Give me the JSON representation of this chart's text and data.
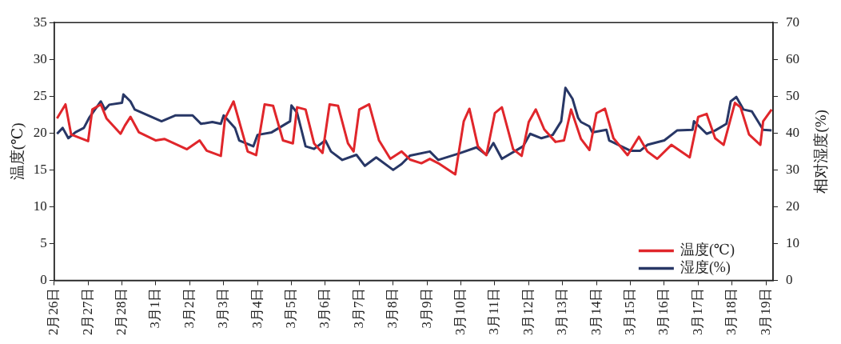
{
  "chart_data": {
    "type": "line",
    "xlim": [
      "--02-26",
      "--03-19T05:00"
    ],
    "xticks": [
      {
        "value": "--02-26",
        "label": "2月26日"
      },
      {
        "value": "--02-27",
        "label": "2月27日"
      },
      {
        "value": "--02-28",
        "label": "2月28日"
      },
      {
        "value": "--03-01",
        "label": "3月1日"
      },
      {
        "value": "--03-02",
        "label": "3月2日"
      },
      {
        "value": "--03-03",
        "label": "3月3日"
      },
      {
        "value": "--03-04",
        "label": "3月4日"
      },
      {
        "value": "--03-05",
        "label": "3月5日"
      },
      {
        "value": "--03-06",
        "label": "3月6日"
      },
      {
        "value": "--03-07",
        "label": "3月7日"
      },
      {
        "value": "--03-08",
        "label": "3月8日"
      },
      {
        "value": "--03-09",
        "label": "3月9日"
      },
      {
        "value": "--03-10",
        "label": "3月10日"
      },
      {
        "value": "--03-11",
        "label": "3月11日"
      },
      {
        "value": "--03-12",
        "label": "3月12日"
      },
      {
        "value": "--03-13",
        "label": "3月13日"
      },
      {
        "value": "--03-14",
        "label": "3月14日"
      },
      {
        "value": "--03-15",
        "label": "3月15日"
      },
      {
        "value": "--03-16",
        "label": "3月16日"
      },
      {
        "value": "--03-17",
        "label": "3月17日"
      },
      {
        "value": "--03-18",
        "label": "3月18日"
      },
      {
        "value": "--03-19",
        "label": "3月19日"
      }
    ],
    "ylabel": "温度(℃)",
    "y2label": "相对湿度(%)",
    "ylim": [
      0,
      35
    ],
    "yticks": [
      0,
      5,
      10,
      15,
      20,
      25,
      30,
      35
    ],
    "y2lim": [
      0,
      70
    ],
    "y2ticks": [
      0,
      10,
      20,
      30,
      40,
      50,
      60,
      70
    ],
    "grid": false,
    "legend": "bottom right",
    "marker": "none",
    "line_style": "solid",
    "series": [
      {
        "name": "温度(℃)",
        "color": "#e0262b",
        "x": [
          "--02-26T02:00",
          "--02-26T08:00",
          "--02-26T12:00",
          "--02-27T00:00",
          "--02-27T03:00",
          "--02-27T09:00",
          "--02-27T13:00",
          "--02-27T23:00",
          "--02-28T02:00",
          "--02-28T06:00",
          "--02-28T12:00",
          "--03-01T00:00",
          "--03-01T06:00",
          "--03-01T22:00",
          "--03-02T07:00",
          "--03-02T12:00",
          "--03-02T22:00",
          "--03-03T01:00",
          "--03-03T07:00",
          "--03-03T17:00",
          "--03-03T23:00",
          "--03-04T05:00",
          "--03-04T11:00",
          "--03-04T18:00",
          "--03-05T01:00",
          "--03-05T04:00",
          "--03-05T10:00",
          "--03-05T16:00",
          "--03-05T22:00",
          "--03-06T03:00",
          "--03-06T09:00",
          "--03-06T16:00",
          "--03-06T20:00",
          "--03-07T00:00",
          "--03-07T07:00",
          "--03-07T14:00",
          "--03-07T22:00",
          "--03-08T06:00",
          "--03-08T12:00",
          "--03-08T20:00",
          "--03-09T02:00",
          "--03-09T08:00",
          "--03-09T20:00",
          "--03-10T02:00",
          "--03-10T06:00",
          "--03-10T12:00",
          "--03-10T18:00",
          "--03-11T00:00",
          "--03-11T05:00",
          "--03-11T13:00",
          "--03-11T19:00",
          "--03-12T00:00",
          "--03-12T05:00",
          "--03-12T11:00",
          "--03-12T19:00",
          "--03-13T01:00",
          "--03-13T06:00",
          "--03-13T13:00",
          "--03-13T19:00",
          "--03-14T00:00",
          "--03-14T06:00",
          "--03-14T12:00",
          "--03-14T22:00",
          "--03-15T06:00",
          "--03-15T12:00",
          "--03-15T19:00",
          "--03-16T05:00",
          "--03-16T18:00",
          "--03-17T00:00",
          "--03-17T06:00",
          "--03-17T12:00",
          "--03-17T18:00",
          "--03-18T02:00",
          "--03-18T06:00",
          "--03-18T12:00",
          "--03-18T20:00",
          "--03-18T22:00",
          "--03-19T04:00"
        ],
        "values": [
          22.0,
          23.9,
          19.8,
          18.9,
          23.2,
          23.9,
          22.0,
          19.9,
          21.0,
          22.2,
          20.1,
          19.0,
          19.2,
          17.8,
          19.0,
          17.6,
          16.9,
          22.0,
          24.3,
          17.5,
          17.0,
          23.9,
          23.7,
          19.0,
          18.6,
          23.5,
          23.2,
          18.6,
          17.3,
          23.9,
          23.7,
          18.6,
          17.5,
          23.2,
          23.9,
          19.0,
          16.5,
          17.5,
          16.4,
          15.9,
          16.5,
          15.9,
          14.4,
          21.6,
          23.3,
          18.2,
          17.0,
          22.7,
          23.5,
          17.8,
          16.9,
          21.5,
          23.2,
          20.5,
          18.8,
          19.0,
          23.2,
          19.2,
          17.7,
          22.7,
          23.3,
          19.3,
          17.0,
          19.5,
          17.5,
          16.5,
          18.4,
          16.7,
          22.2,
          22.6,
          19.3,
          18.4,
          24.1,
          23.5,
          19.8,
          18.4,
          21.6,
          23.2
        ]
      },
      {
        "name": "湿度(%)",
        "color": "#283766",
        "axis": "y2",
        "x": [
          "--02-26T02:00",
          "--02-26T06:00",
          "--02-26T10:00",
          "--02-26T15:00",
          "--02-26T21:00",
          "--02-27T01:00",
          "--02-27T09:00",
          "--02-27T12:00",
          "--02-27T15:00",
          "--02-28T00:00",
          "--02-28T01:00",
          "--02-28T06:00",
          "--02-28T09:00",
          "--03-01T04:00",
          "--03-01T14:00",
          "--03-02T02:00",
          "--03-02T08:00",
          "--03-02T16:00",
          "--03-02T22:00",
          "--03-03T00:00",
          "--03-03T08:00",
          "--03-03T11:00",
          "--03-03T21:00",
          "--03-04T00:00",
          "--03-04T10:00",
          "--03-04T23:00",
          "--03-05T00:00",
          "--03-05T04:00",
          "--03-05T10:00",
          "--03-05T16:00",
          "--03-06T00:00",
          "--03-06T04:00",
          "--03-06T12:00",
          "--03-06T22:00",
          "--03-07T04:00",
          "--03-07T12:00",
          "--03-08T00:00",
          "--03-08T06:00",
          "--03-08T12:00",
          "--03-09T02:00",
          "--03-09T08:00",
          "--03-09T23:00",
          "--03-10T11:00",
          "--03-10T18:00",
          "--03-10T23:00",
          "--03-11T05:00",
          "--03-11T20:00",
          "--03-12T01:00",
          "--03-12T09:00",
          "--03-12T17:00",
          "--03-12T23:00",
          "--03-13T02:00",
          "--03-13T07:00",
          "--03-13T11:00",
          "--03-13T13:00",
          "--03-13T19:00",
          "--03-13T21:00",
          "--03-14T07:00",
          "--03-14T09:00",
          "--03-15T00:00",
          "--03-15T07:00",
          "--03-15T12:00",
          "--03-16T00:00",
          "--03-16T09:00",
          "--03-16T20:00",
          "--03-16T21:00",
          "--03-17T06:00",
          "--03-17T12:00",
          "--03-17T20:00",
          "--03-17T23:00",
          "--03-18T03:00",
          "--03-18T08:00",
          "--03-18T14:00",
          "--03-18T22:00",
          "--03-19T04:00"
        ],
        "values": [
          39.8,
          41.4,
          38.6,
          40.2,
          41.4,
          44.3,
          48.6,
          46.4,
          47.7,
          48.2,
          50.5,
          48.6,
          46.4,
          43.2,
          44.8,
          44.8,
          42.5,
          43.0,
          42.5,
          44.8,
          41.4,
          38.0,
          36.4,
          39.5,
          40.2,
          43.2,
          47.5,
          45.5,
          36.4,
          35.7,
          38.0,
          35.0,
          32.7,
          34.1,
          31.1,
          33.4,
          30.0,
          31.6,
          33.9,
          35.0,
          32.7,
          34.5,
          36.1,
          34.1,
          37.3,
          33.0,
          36.4,
          39.8,
          38.6,
          39.5,
          43.2,
          52.3,
          49.3,
          44.1,
          43.0,
          41.8,
          40.2,
          40.9,
          38.0,
          35.2,
          35.2,
          36.8,
          38.0,
          40.7,
          40.9,
          43.2,
          39.8,
          40.7,
          42.5,
          48.6,
          49.8,
          46.4,
          45.9,
          40.9,
          40.7
        ]
      }
    ]
  }
}
